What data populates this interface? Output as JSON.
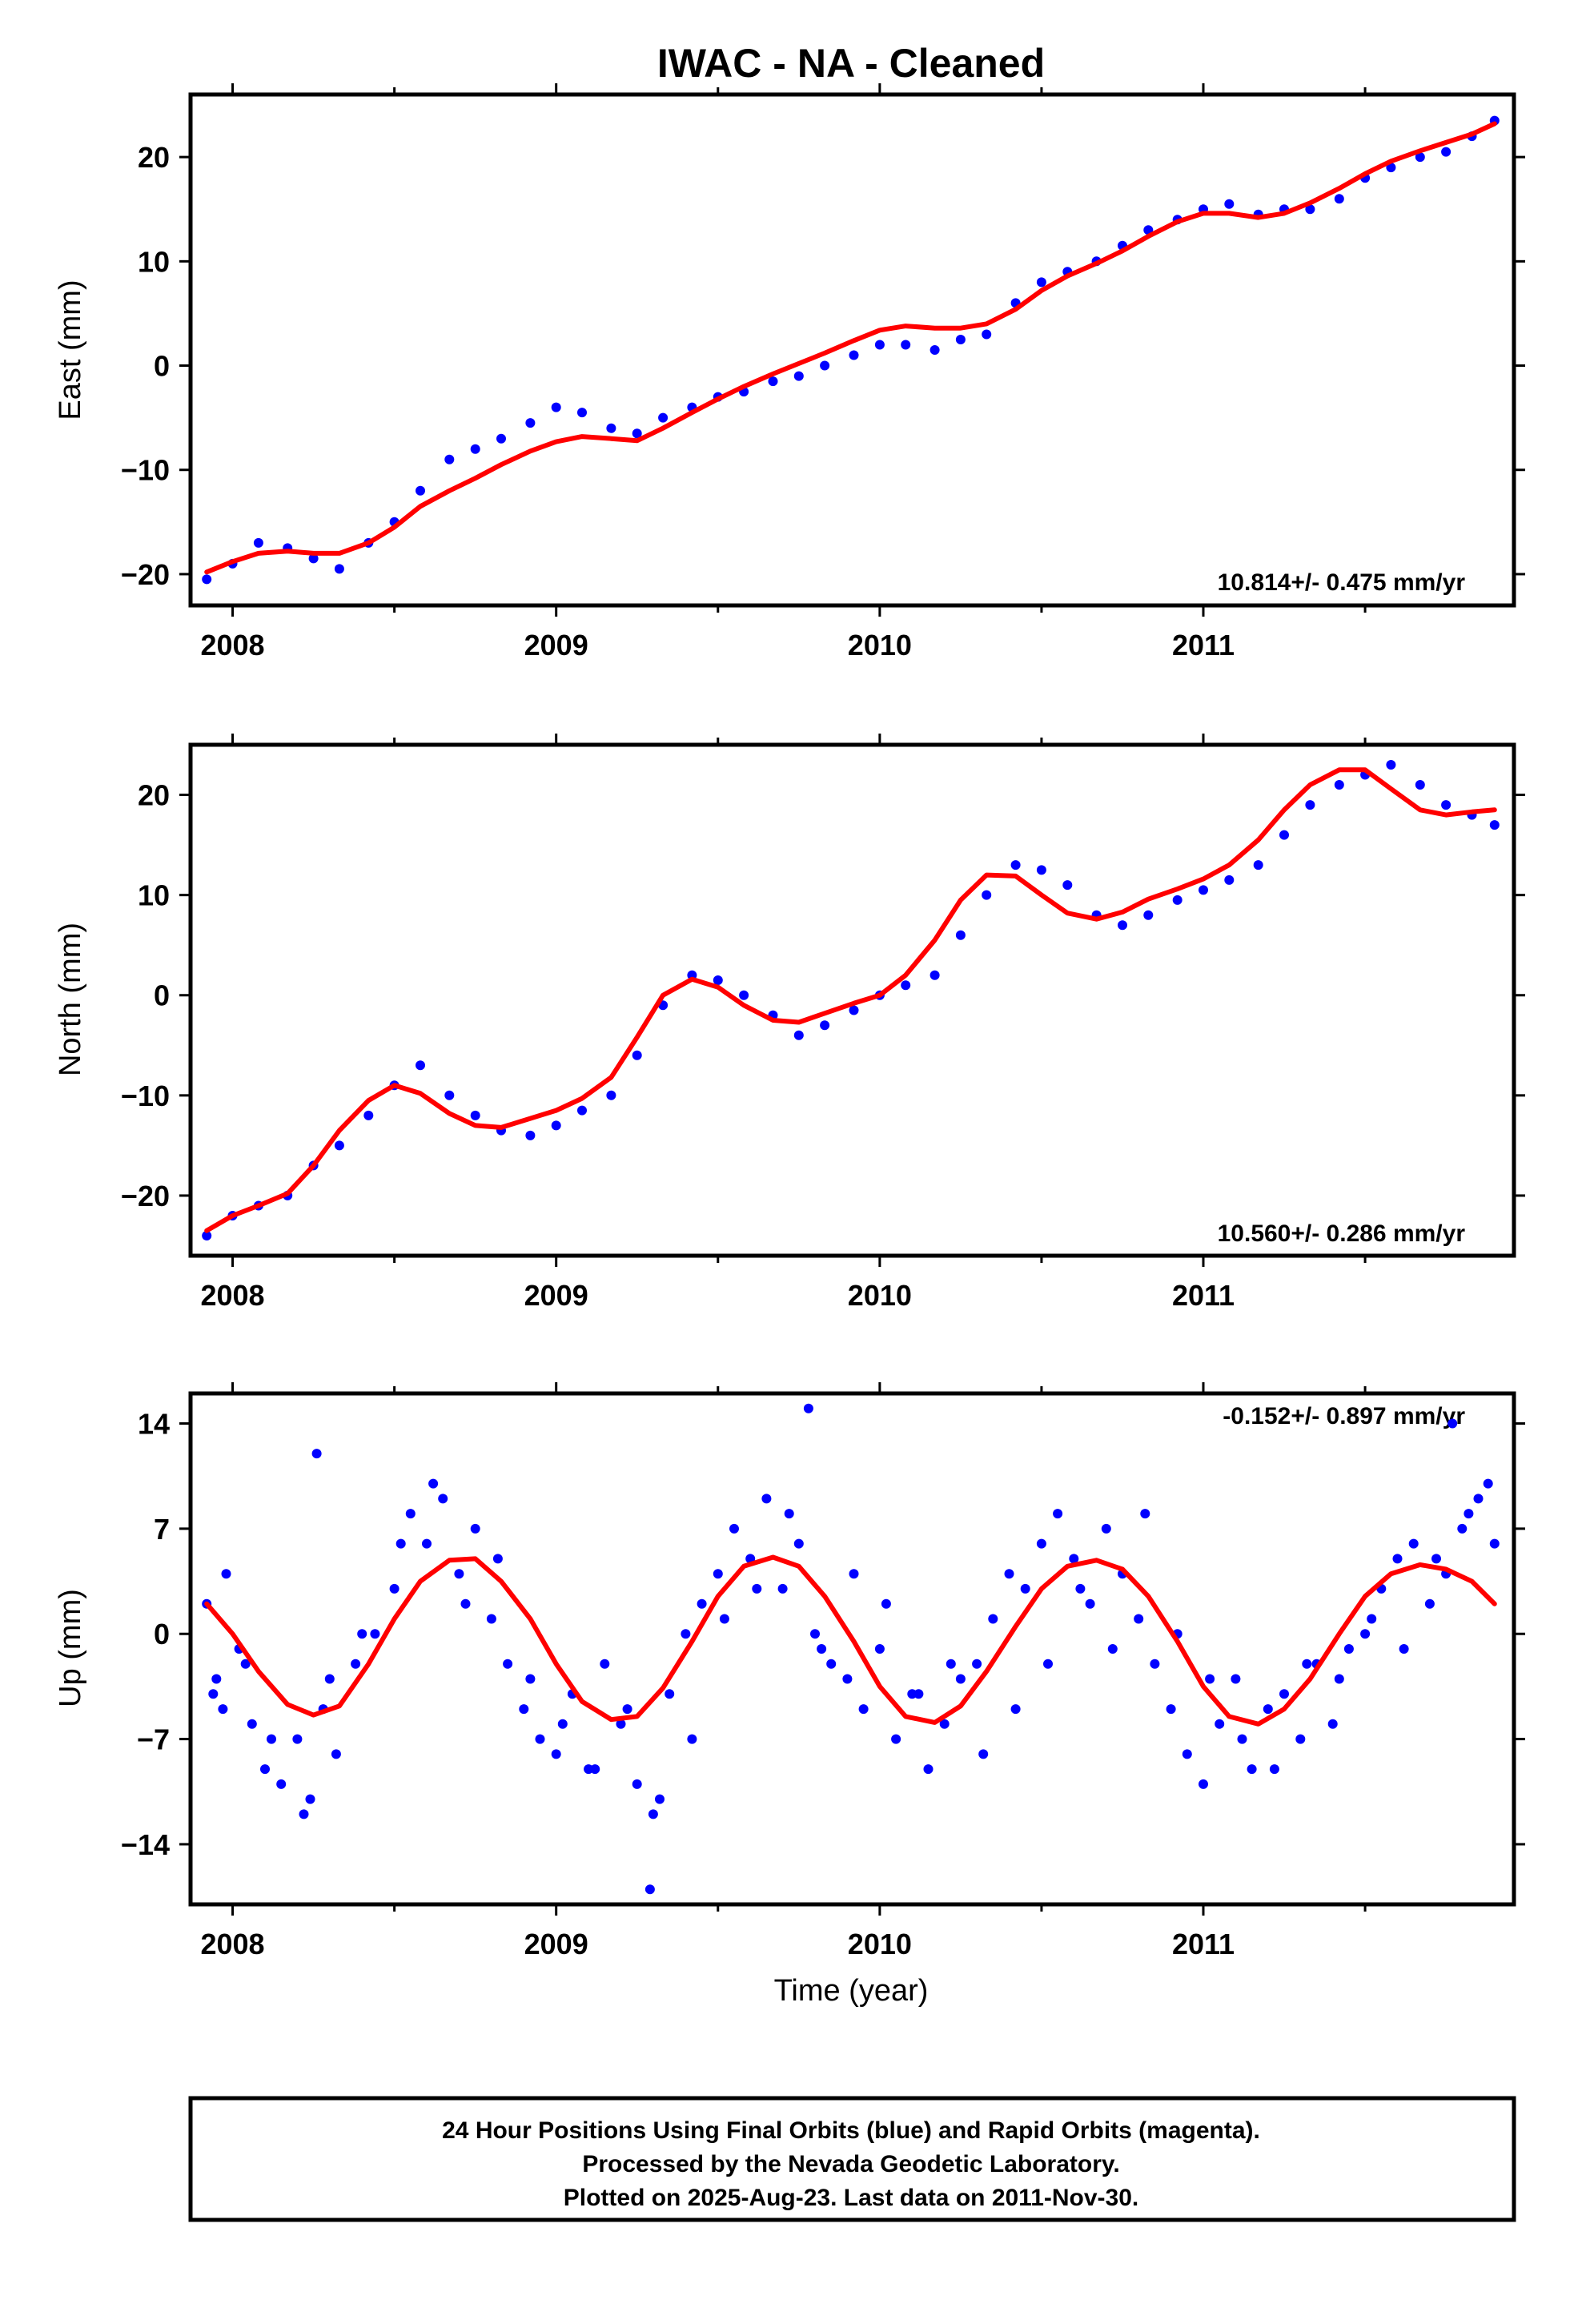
{
  "title": "IWAC  - NA - Cleaned",
  "xlabel": "Time (year)",
  "footer": {
    "line1": "24 Hour Positions Using Final Orbits (blue) and Rapid Orbits (magenta).",
    "line2": "Processed by the Nevada Geodetic Laboratory.",
    "line3": "Plotted on 2025-Aug-23. Last data on 2011-Nov-30."
  },
  "colors": {
    "points": "#0000ff",
    "fit": "#ff0000",
    "axes": "#000000"
  },
  "chart_data": [
    {
      "type": "scatter",
      "ylabel": "East (mm)",
      "rate_text": "10.814+/- 0.475 mm/yr",
      "xlim": [
        2007.87,
        2011.96
      ],
      "ylim": [
        -23,
        26
      ],
      "x_ticks": [
        2008,
        2009,
        2010,
        2011
      ],
      "y_ticks": [
        -20,
        -10,
        0,
        10,
        20
      ],
      "series": [
        {
          "kind": "points",
          "x": [
            2007.92,
            2008.0,
            2008.08,
            2008.17,
            2008.25,
            2008.33,
            2008.42,
            2008.5,
            2008.58,
            2008.67,
            2008.75,
            2008.83,
            2008.92,
            2009.0,
            2009.08,
            2009.17,
            2009.25,
            2009.33,
            2009.42,
            2009.5,
            2009.58,
            2009.67,
            2009.75,
            2009.83,
            2009.92,
            2010.0,
            2010.08,
            2010.17,
            2010.25,
            2010.33,
            2010.42,
            2010.5,
            2010.58,
            2010.67,
            2010.75,
            2010.83,
            2010.92,
            2011.0,
            2011.08,
            2011.17,
            2011.25,
            2011.33,
            2011.42,
            2011.5,
            2011.58,
            2011.67,
            2011.75,
            2011.83,
            2011.9
          ],
          "y": [
            -20.5,
            -19,
            -17,
            -17.5,
            -18.5,
            -19.5,
            -17,
            -15,
            -12,
            -9,
            -8,
            -7,
            -5.5,
            -4,
            -4.5,
            -6,
            -6.5,
            -5,
            -4,
            -3,
            -2.5,
            -1.5,
            -1,
            0,
            1,
            2,
            2,
            1.5,
            2.5,
            3,
            6,
            8,
            9,
            10,
            11.5,
            13,
            14,
            15,
            15.5,
            14.5,
            15,
            15,
            16,
            18,
            19,
            20,
            20.5,
            22,
            23.5
          ]
        },
        {
          "kind": "fit",
          "x": [
            2007.92,
            2008.0,
            2008.08,
            2008.17,
            2008.25,
            2008.33,
            2008.42,
            2008.5,
            2008.58,
            2008.67,
            2008.75,
            2008.83,
            2008.92,
            2009.0,
            2009.08,
            2009.17,
            2009.25,
            2009.33,
            2009.42,
            2009.5,
            2009.58,
            2009.67,
            2009.75,
            2009.83,
            2009.92,
            2010.0,
            2010.08,
            2010.17,
            2010.25,
            2010.33,
            2010.42,
            2010.5,
            2010.58,
            2010.67,
            2010.75,
            2010.83,
            2010.92,
            2011.0,
            2011.08,
            2011.17,
            2011.25,
            2011.33,
            2011.42,
            2011.5,
            2011.58,
            2011.67,
            2011.75,
            2011.83,
            2011.9
          ],
          "y": [
            -19.8,
            -18.8,
            -18,
            -17.8,
            -18,
            -18,
            -17,
            -15.5,
            -13.5,
            -12,
            -10.8,
            -9.5,
            -8.2,
            -7.3,
            -6.8,
            -7,
            -7.2,
            -6,
            -4.5,
            -3.2,
            -2,
            -0.8,
            0.2,
            1.2,
            2.4,
            3.4,
            3.8,
            3.6,
            3.6,
            4,
            5.4,
            7.2,
            8.6,
            9.8,
            11,
            12.4,
            13.8,
            14.6,
            14.6,
            14.2,
            14.6,
            15.6,
            17,
            18.4,
            19.6,
            20.6,
            21.4,
            22.2,
            23.2
          ]
        }
      ]
    },
    {
      "type": "scatter",
      "ylabel": "North (mm)",
      "rate_text": "10.560+/- 0.286 mm/yr",
      "xlim": [
        2007.87,
        2011.96
      ],
      "ylim": [
        -26,
        25
      ],
      "x_ticks": [
        2008,
        2009,
        2010,
        2011
      ],
      "y_ticks": [
        -20,
        -10,
        0,
        10,
        20
      ],
      "series": [
        {
          "kind": "points",
          "x": [
            2007.92,
            2008.0,
            2008.08,
            2008.17,
            2008.25,
            2008.33,
            2008.42,
            2008.5,
            2008.58,
            2008.67,
            2008.75,
            2008.83,
            2008.92,
            2009.0,
            2009.08,
            2009.17,
            2009.25,
            2009.33,
            2009.42,
            2009.5,
            2009.58,
            2009.67,
            2009.75,
            2009.83,
            2009.92,
            2010.0,
            2010.08,
            2010.17,
            2010.25,
            2010.33,
            2010.42,
            2010.5,
            2010.58,
            2010.67,
            2010.75,
            2010.83,
            2010.92,
            2011.0,
            2011.08,
            2011.17,
            2011.25,
            2011.33,
            2011.42,
            2011.5,
            2011.58,
            2011.67,
            2011.75,
            2011.83,
            2011.9
          ],
          "y": [
            -24,
            -22,
            -21,
            -20,
            -17,
            -15,
            -12,
            -9,
            -7,
            -10,
            -12,
            -13.5,
            -14,
            -13,
            -11.5,
            -10,
            -6,
            -1,
            2,
            1.5,
            0,
            -2,
            -4,
            -3,
            -1.5,
            0,
            1,
            2,
            6,
            10,
            13,
            12.5,
            11,
            8,
            7,
            8,
            9.5,
            10.5,
            11.5,
            13,
            16,
            19,
            21,
            22,
            23,
            21,
            19,
            18,
            17
          ]
        },
        {
          "kind": "fit",
          "x": [
            2007.92,
            2008.0,
            2008.08,
            2008.17,
            2008.25,
            2008.33,
            2008.42,
            2008.5,
            2008.58,
            2008.67,
            2008.75,
            2008.83,
            2008.92,
            2009.0,
            2009.08,
            2009.17,
            2009.25,
            2009.33,
            2009.42,
            2009.5,
            2009.58,
            2009.67,
            2009.75,
            2009.83,
            2009.92,
            2010.0,
            2010.08,
            2010.17,
            2010.25,
            2010.33,
            2010.42,
            2010.5,
            2010.58,
            2010.67,
            2010.75,
            2010.83,
            2010.92,
            2011.0,
            2011.08,
            2011.17,
            2011.25,
            2011.33,
            2011.42,
            2011.5,
            2011.58,
            2011.67,
            2011.75,
            2011.83,
            2011.9
          ],
          "y": [
            -23.5,
            -22,
            -21,
            -19.8,
            -17,
            -13.5,
            -10.5,
            -9,
            -9.8,
            -11.8,
            -13,
            -13.2,
            -12.3,
            -11.5,
            -10.3,
            -8.2,
            -4.2,
            0,
            1.6,
            0.8,
            -1,
            -2.5,
            -2.7,
            -1.8,
            -0.8,
            0,
            2,
            5.5,
            9.5,
            12,
            11.9,
            10,
            8.2,
            7.6,
            8.3,
            9.6,
            10.6,
            11.6,
            13,
            15.5,
            18.5,
            21,
            22.5,
            22.5,
            20.6,
            18.5,
            18,
            18.3,
            18.5
          ]
        }
      ]
    },
    {
      "type": "scatter",
      "ylabel": "Up (mm)",
      "rate_text": "-0.152+/- 0.897 mm/yr",
      "xlim": [
        2007.87,
        2011.96
      ],
      "ylim": [
        -18,
        16
      ],
      "x_ticks": [
        2008,
        2009,
        2010,
        2011
      ],
      "y_ticks": [
        -14,
        -7,
        0,
        7,
        14
      ],
      "series": [
        {
          "kind": "points",
          "x": [
            2007.92,
            2007.95,
            2007.98,
            2008.02,
            2008.06,
            2008.1,
            2008.15,
            2008.2,
            2008.24,
            2008.28,
            2008.32,
            2008.38,
            2008.44,
            2008.5,
            2008.55,
            2008.6,
            2008.65,
            2008.7,
            2008.75,
            2008.8,
            2008.85,
            2008.9,
            2008.95,
            2009.0,
            2009.05,
            2009.1,
            2009.15,
            2009.2,
            2009.25,
            2009.3,
            2009.35,
            2009.4,
            2009.45,
            2009.5,
            2009.55,
            2009.6,
            2009.65,
            2009.7,
            2009.75,
            2009.8,
            2009.85,
            2009.9,
            2009.95,
            2010.0,
            2010.05,
            2010.1,
            2010.15,
            2010.2,
            2010.25,
            2010.3,
            2010.35,
            2010.4,
            2010.45,
            2010.5,
            2010.55,
            2010.6,
            2010.65,
            2010.7,
            2010.75,
            2010.8,
            2010.85,
            2010.9,
            2010.95,
            2011.0,
            2011.05,
            2011.1,
            2011.15,
            2011.2,
            2011.25,
            2011.3,
            2011.35,
            2011.4,
            2011.45,
            2011.5,
            2011.55,
            2011.6,
            2011.65,
            2011.7,
            2011.75,
            2011.8,
            2011.85,
            2011.9,
            2007.94,
            2008.04,
            2008.12,
            2008.22,
            2008.3,
            2008.4,
            2008.52,
            2008.62,
            2008.72,
            2008.82,
            2008.92,
            2009.02,
            2009.12,
            2009.22,
            2009.32,
            2009.42,
            2009.52,
            2009.62,
            2009.72,
            2009.82,
            2009.92,
            2010.02,
            2010.12,
            2010.22,
            2010.32,
            2010.42,
            2010.52,
            2010.62,
            2010.72,
            2010.82,
            2010.92,
            2011.02,
            2011.12,
            2011.22,
            2011.32,
            2011.42,
            2011.52,
            2011.62,
            2011.72,
            2011.82,
            2011.88,
            2007.97,
            2008.26,
            2009.29,
            2011.77,
            2009.78
          ],
          "y": [
            2,
            -3,
            4,
            -1,
            -6,
            -9,
            -10,
            -7,
            -11,
            -5,
            -8,
            -2,
            0,
            3,
            8,
            6,
            9,
            4,
            7,
            1,
            -2,
            -5,
            -7,
            -8,
            -4,
            -9,
            -2,
            -6,
            -10,
            -12,
            -4,
            0,
            2,
            4,
            7,
            5,
            9,
            3,
            6,
            0,
            -2,
            -3,
            -5,
            -1,
            -7,
            -4,
            -9,
            -6,
            -3,
            -2,
            1,
            4,
            3,
            6,
            8,
            5,
            2,
            7,
            4,
            1,
            -2,
            -5,
            -8,
            -10,
            -6,
            -3,
            -9,
            -5,
            -4,
            -7,
            -2,
            -6,
            -1,
            0,
            3,
            5,
            6,
            2,
            4,
            7,
            9,
            6,
            -4,
            -2,
            -7,
            -12,
            -3,
            0,
            6,
            10,
            2,
            5,
            -3,
            -6,
            -9,
            -5,
            -11,
            -7,
            1,
            3,
            8,
            -1,
            4,
            2,
            -4,
            -2,
            -8,
            -5,
            -2,
            3,
            -1,
            8,
            0,
            -3,
            -7,
            -9,
            -2,
            -3,
            1,
            -1,
            5,
            8,
            10,
            -5,
            12,
            -17,
            14,
            15
          ]
        },
        {
          "kind": "fit",
          "x": [
            2007.92,
            2008.0,
            2008.08,
            2008.17,
            2008.25,
            2008.33,
            2008.42,
            2008.5,
            2008.58,
            2008.67,
            2008.75,
            2008.83,
            2008.92,
            2009.0,
            2009.08,
            2009.17,
            2009.25,
            2009.33,
            2009.42,
            2009.5,
            2009.58,
            2009.67,
            2009.75,
            2009.83,
            2009.92,
            2010.0,
            2010.08,
            2010.17,
            2010.25,
            2010.33,
            2010.42,
            2010.5,
            2010.58,
            2010.67,
            2010.75,
            2010.83,
            2010.92,
            2011.0,
            2011.08,
            2011.17,
            2011.25,
            2011.33,
            2011.42,
            2011.5,
            2011.58,
            2011.67,
            2011.75,
            2011.83,
            2011.9
          ],
          "y": [
            2,
            0,
            -2.5,
            -4.7,
            -5.4,
            -4.8,
            -2,
            1,
            3.5,
            4.9,
            5,
            3.5,
            1,
            -2,
            -4.5,
            -5.7,
            -5.5,
            -3.6,
            -0.5,
            2.5,
            4.5,
            5.1,
            4.5,
            2.5,
            -0.5,
            -3.5,
            -5.5,
            -5.9,
            -4.8,
            -2.5,
            0.5,
            3,
            4.5,
            4.9,
            4.3,
            2.5,
            -0.5,
            -3.5,
            -5.5,
            -6,
            -5,
            -3,
            0,
            2.5,
            4,
            4.6,
            4.3,
            3.5,
            2
          ]
        }
      ]
    }
  ]
}
